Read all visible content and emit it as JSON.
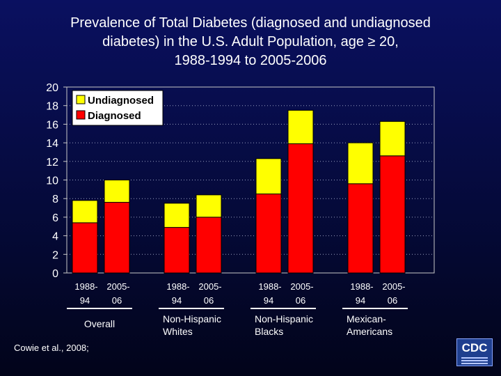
{
  "chart_data": {
    "type": "bar",
    "stacked": true,
    "title_lines": [
      "Prevalence of Total Diabetes (diagnosed and undiagnosed",
      "diabetes) in the U.S. Adult Population, age ≥ 20,",
      "1988-1994 to 2005-2006"
    ],
    "ylim": [
      0,
      20
    ],
    "yticks": [
      0,
      2,
      4,
      6,
      8,
      10,
      12,
      14,
      16,
      18,
      20
    ],
    "grid": "horizontal dotted",
    "legend_position": "top-left",
    "groups": [
      {
        "label_lines": [
          "Overall"
        ],
        "categories": [
          [
            "1988-",
            "94"
          ],
          [
            "2005-",
            "06"
          ]
        ]
      },
      {
        "label_lines": [
          "Non-Hispanic",
          "Whites"
        ],
        "categories": [
          [
            "1988-",
            "94"
          ],
          [
            "2005-",
            "06"
          ]
        ]
      },
      {
        "label_lines": [
          "Non-Hispanic",
          "Blacks"
        ],
        "categories": [
          [
            "1988-",
            "94"
          ],
          [
            "2005-",
            "06"
          ]
        ]
      },
      {
        "label_lines": [
          "Mexican-",
          "Americans"
        ],
        "categories": [
          [
            "1988-",
            "94"
          ],
          [
            "2005-",
            "06"
          ]
        ]
      }
    ],
    "series": [
      {
        "name": "Diagnosed",
        "color": "#ff0000",
        "values": [
          5.4,
          7.6,
          4.9,
          6.0,
          8.5,
          13.9,
          9.6,
          12.6
        ]
      },
      {
        "name": "Undiagnosed",
        "color": "#ffff00",
        "values": [
          2.4,
          2.4,
          2.6,
          2.4,
          3.8,
          3.6,
          4.4,
          3.7
        ]
      }
    ]
  },
  "footer": {
    "citation": "Cowie et al., 2008;",
    "logo_text": "CDC"
  }
}
